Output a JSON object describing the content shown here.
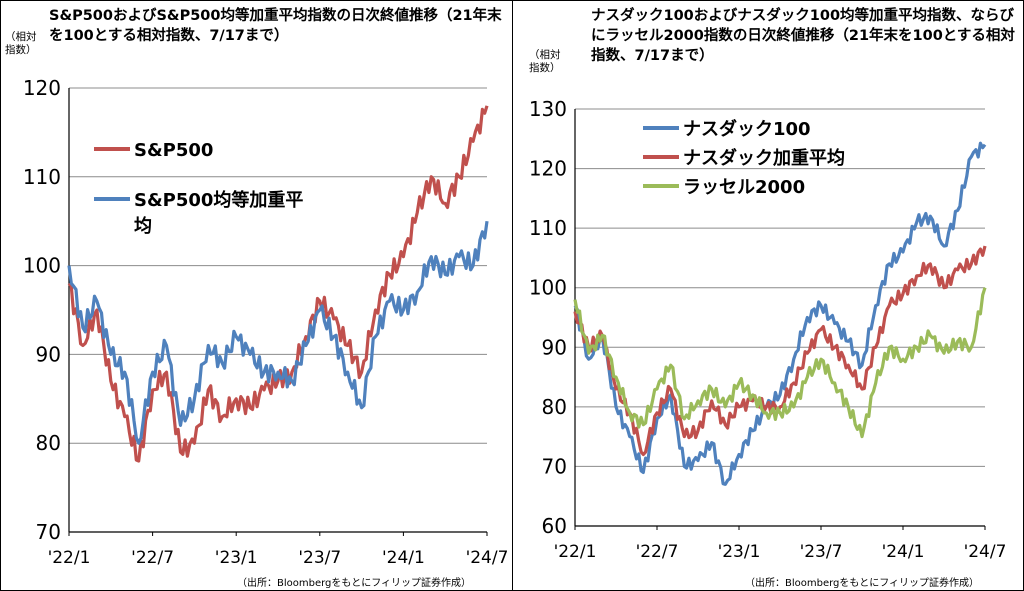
{
  "source": "（出所：Bloombergをもとにフィリップ証券作成）",
  "chart_data": [
    {
      "type": "line",
      "title": "S&P500およびS&P500均等加重平均指数の日次終値推移（21年末を100とする相対指数、7/17まで）",
      "ylabel": "（相対指数）",
      "ylim": [
        70,
        120
      ],
      "yticks": [
        70,
        80,
        90,
        100,
        110,
        120
      ],
      "xticks": [
        "'22/1",
        "'22/7",
        "'23/1",
        "'23/7",
        "'24/1",
        "'24/7"
      ],
      "legend_position": "upper-left",
      "grid": "horizontal",
      "x": [
        "2022-01",
        "2022-02",
        "2022-03",
        "2022-04",
        "2022-05",
        "2022-06",
        "2022-07",
        "2022-08",
        "2022-09",
        "2022-10",
        "2022-11",
        "2022-12",
        "2023-01",
        "2023-02",
        "2023-03",
        "2023-04",
        "2023-05",
        "2023-06",
        "2023-07",
        "2023-08",
        "2023-09",
        "2023-10",
        "2023-11",
        "2023-12",
        "2024-01",
        "2024-02",
        "2024-03",
        "2024-04",
        "2024-05",
        "2024-06",
        "2024-07"
      ],
      "series": [
        {
          "name": "S&P500",
          "color": "#c0504d",
          "values": [
            98,
            91,
            95,
            87,
            83,
            78,
            86,
            88,
            79,
            80,
            86,
            83,
            85,
            84,
            86,
            87,
            88,
            92,
            96,
            94,
            91,
            88,
            95,
            99,
            101,
            106,
            110,
            107,
            110,
            114,
            118
          ]
        },
        {
          "name": "S&P500均等加重平均",
          "color": "#4f81bd",
          "values": [
            100,
            93,
            96,
            90,
            88,
            80,
            88,
            91,
            82,
            85,
            91,
            89,
            92,
            90,
            88,
            88,
            87,
            91,
            95,
            92,
            88,
            84,
            92,
            96,
            95,
            97,
            101,
            99,
            101,
            100,
            105
          ]
        }
      ]
    },
    {
      "type": "line",
      "title": "ナスダック100およびナスダック100均等加重平均指数、ならびにラッセル2000指数の日次終値推移（21年末を100とする相対指数、7/17まで）",
      "ylabel": "（相対指数）",
      "ylim": [
        60,
        130
      ],
      "yticks": [
        60,
        70,
        80,
        90,
        100,
        110,
        120,
        130
      ],
      "xticks": [
        "'22/1",
        "'22/7",
        "'23/1",
        "'23/7",
        "'24/1",
        "'24/7"
      ],
      "legend_position": "upper-left",
      "grid": "horizontal",
      "x": [
        "2022-01",
        "2022-02",
        "2022-03",
        "2022-04",
        "2022-05",
        "2022-06",
        "2022-07",
        "2022-08",
        "2022-09",
        "2022-10",
        "2022-11",
        "2022-12",
        "2023-01",
        "2023-02",
        "2023-03",
        "2023-04",
        "2023-05",
        "2023-06",
        "2023-07",
        "2023-08",
        "2023-09",
        "2023-10",
        "2023-11",
        "2023-12",
        "2024-01",
        "2024-02",
        "2024-03",
        "2024-04",
        "2024-05",
        "2024-06",
        "2024-07"
      ],
      "series": [
        {
          "name": "ナスダック100",
          "color": "#4f81bd",
          "values": [
            97,
            88,
            92,
            80,
            75,
            69,
            78,
            82,
            70,
            71,
            74,
            67,
            72,
            76,
            80,
            82,
            88,
            95,
            97,
            94,
            91,
            87,
            97,
            104,
            106,
            111,
            112,
            107,
            113,
            122,
            124
          ]
        },
        {
          "name": "ナスダック加重平均",
          "color": "#c0504d",
          "values": [
            96,
            90,
            92,
            83,
            79,
            72,
            79,
            83,
            75,
            76,
            81,
            77,
            80,
            81,
            80,
            80,
            84,
            89,
            93,
            90,
            87,
            83,
            90,
            97,
            99,
            102,
            104,
            100,
            103,
            104,
            107
          ]
        },
        {
          "name": "ラッセル2000",
          "color": "#9bbb59",
          "values": [
            98,
            89,
            92,
            85,
            79,
            77,
            83,
            87,
            78,
            81,
            83,
            80,
            84,
            82,
            79,
            79,
            80,
            85,
            88,
            84,
            80,
            75,
            84,
            90,
            88,
            90,
            92,
            89,
            91,
            90,
            100
          ]
        }
      ]
    }
  ]
}
